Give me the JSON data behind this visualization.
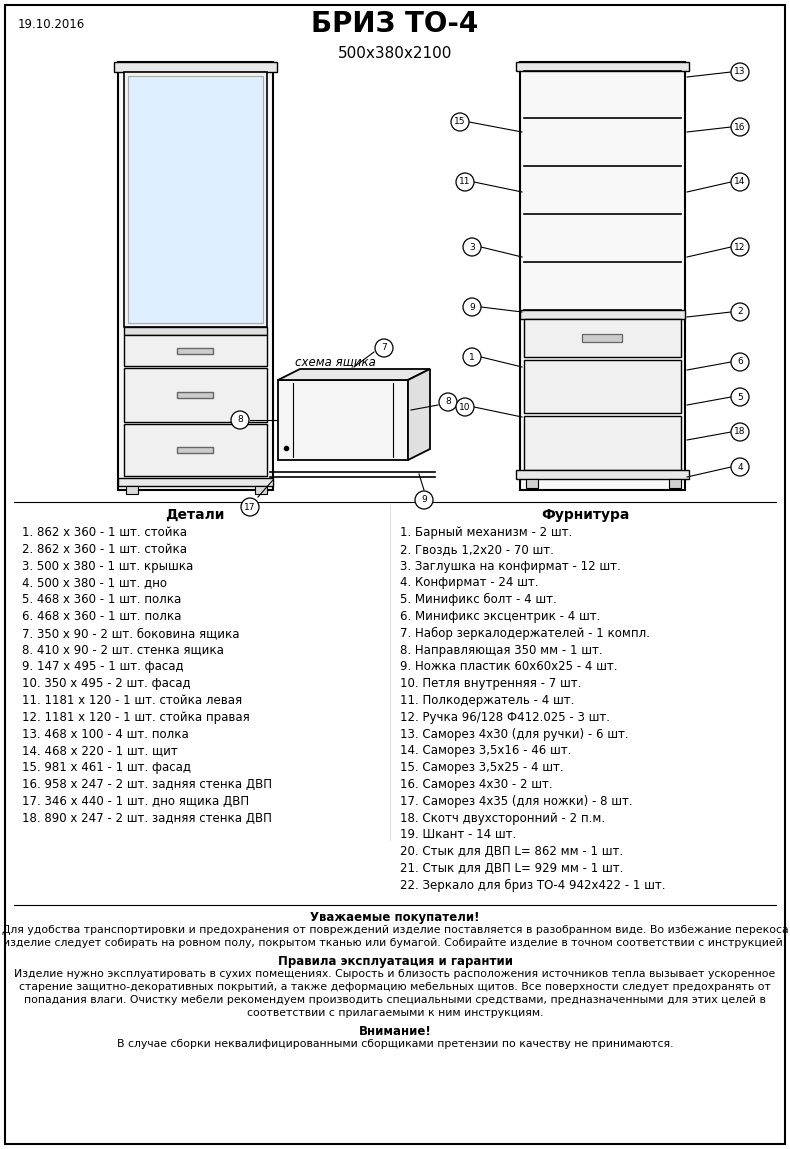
{
  "title": "БРИЗ ТО-4",
  "subtitle": "500х380х2100",
  "date": "19.10.2016",
  "bg_color": "#ffffff",
  "border_color": "#000000",
  "details_header": "Детали",
  "hardware_header": "Фурнитура",
  "details": [
    "1. 862 х 360 - 1 шт. стойка",
    "2. 862 х 360 - 1 шт. стойка",
    "3. 500 х 380 - 1 шт. крышка",
    "4. 500 х 380 - 1 шт. дно",
    "5. 468 х 360 - 1 шт. полка",
    "6. 468 х 360 - 1 шт. полка",
    "7. 350 х 90 - 2 шт. боковина ящика",
    "8. 410 х 90 - 2 шт. стенка ящика",
    "9. 147 х 495 - 1 шт. фасад",
    "10. 350 х 495 - 2 шт. фасад",
    "11. 1181 х 120 - 1 шт. стойка левая",
    "12. 1181 х 120 - 1 шт. стойка правая",
    "13. 468 х 100 - 4 шт. полка",
    "14. 468 х 220 - 1 шт. щит",
    "15. 981 х 461 - 1 шт. фасад",
    "16. 958 х 247 - 2 шт. задняя стенка ДВП",
    "17. 346 х 440 - 1 шт. дно ящика ДВП",
    "18. 890 х 247 - 2 шт. задняя стенка ДВП"
  ],
  "hardware": [
    "1. Барный механизм - 2 шт.",
    "2. Гвоздь 1,2х20 - 70 шт.",
    "3. Заглушка на конфирмат - 12 шт.",
    "4. Конфирмат - 24 шт.",
    "5. Минификс болт - 4 шт.",
    "6. Минификс эксцентрик - 4 шт.",
    "7. Набор зеркалодержателей - 1 компл.",
    "8. Направляющая 350 мм - 1 шт.",
    "9. Ножка пластик 60х60х25 - 4 шт.",
    "10. Петля внутренняя - 7 шт.",
    "11. Полкодержатель - 4 шт.",
    "12. Ручка 96/128 Ф412.025 - 3 шт.",
    "13. Саморез 4х30 (для ручки) - 6 шт.",
    "14. Саморез 3,5х16 - 46 шт.",
    "15. Саморез 3,5х25 - 4 шт.",
    "16. Саморез 4х30 - 2 шт.",
    "17. Саморез 4х35 (для ножки) - 8 шт.",
    "18. Скотч двухсторонний - 2 п.м.",
    "19. Шкант - 14 шт.",
    "20. Стык для ДВП L= 862 мм - 1 шт.",
    "21. Стык для ДВП L= 929 мм - 1 шт.",
    "22. Зеркало для бриз ТО-4 942х422 - 1 шт."
  ],
  "note_header": "Уважаемые покупатели!",
  "note_text1": "Для удобства транспортировки и предохранения от повреждений изделие поставляется в разобранном виде. Во избежание перекоса",
  "note_text2": "изделие следует собирать на ровном полу, покрытом тканью или бумагой. Собирайте изделие в точном соответствии с инструкцией.",
  "rules_header": "Правила эксплуатация и гарантии",
  "rules_text1": "Изделие нужно эксплуатировать в сухих помещениях. Сырость и близость расположения источников тепла вызывает ускоренное",
  "rules_text2": "старение защитно-декоративных покрытий, а также деформацию мебельных щитов. Все поверхности следует предохранять от",
  "rules_text3": "попадания влаги. Очистку мебели рекомендуем производить специальными средствами, предназначенными для этих целей в",
  "rules_text4": "соответствии с прилагаемыми к ним инструкциям.",
  "warning_header": "Внимание!",
  "warning_text": "В случае сборки неквалифицированными сборщиками претензии по качеству не принимаются.",
  "schema_label": "схема ящика"
}
